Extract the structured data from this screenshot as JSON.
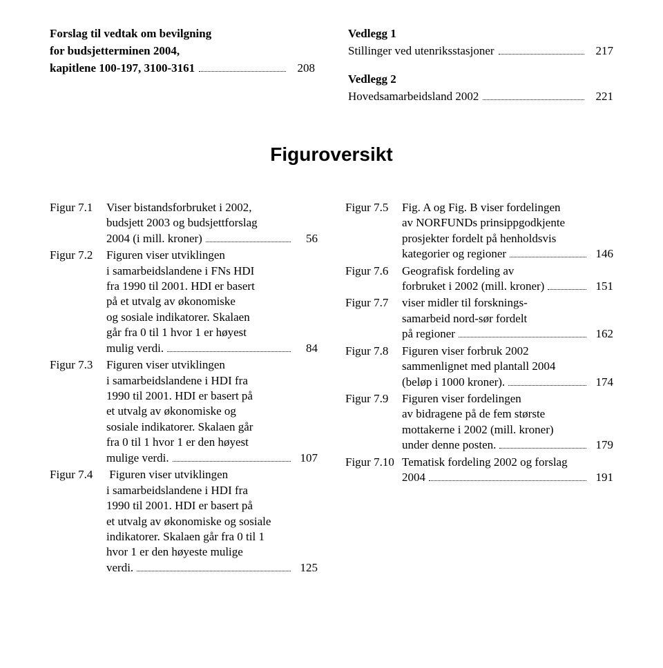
{
  "top_left": {
    "title_lines": [
      "Forslag til vedtak om bevilgning",
      "for budsjetterminen 2004,"
    ],
    "last_line_text": "kapitlene 100-197, 3100-3161",
    "page": "208"
  },
  "top_right": {
    "section1_title": "Vedlegg 1",
    "section1_text": "Stillinger ved utenriksstasjoner",
    "section1_page": "217",
    "section2_title": "Vedlegg 2",
    "section2_text": "Hovedsamarbeidsland 2002",
    "section2_page": "221"
  },
  "heading": "Figuroversikt",
  "left_figs": [
    {
      "label": "Figur 7.1",
      "lines": [
        "Viser bistandsforbruket i 2002,",
        "budsjett 2003 og budsjettforslag"
      ],
      "last": "2004 (i mill. kroner)",
      "page": "56"
    },
    {
      "label": "Figur 7.2",
      "lines": [
        "Figuren viser utviklingen",
        "i samarbeidslandene i FNs HDI",
        "fra 1990 til 2001. HDI er basert",
        "på et utvalg av økonomiske",
        "og sosiale indikatorer. Skalaen",
        "går fra 0 til 1 hvor 1 er høyest"
      ],
      "last": "mulig verdi.",
      "page": "84"
    },
    {
      "label": "Figur 7.3",
      "lines": [
        "Figuren viser utviklingen",
        "i samarbeidslandene i HDI fra",
        "1990 til 2001. HDI er basert på",
        "et utvalg av økonomiske og",
        "sosiale indikatorer. Skalaen går",
        "fra 0 til 1 hvor 1 er den høyest"
      ],
      "last": "mulige verdi.",
      "page": "107"
    },
    {
      "label": "Figur 7.4",
      "lines": [
        " Figuren viser utviklingen",
        "i samarbeidslandene i HDI fra",
        "1990 til 2001. HDI er basert på",
        "et utvalg av økonomiske og sosiale",
        "indikatorer. Skalaen går fra 0 til 1",
        "hvor 1 er den høyeste mulige"
      ],
      "last": "verdi.",
      "page": "125"
    }
  ],
  "right_figs": [
    {
      "label": "Figur 7.5",
      "lines": [
        "Fig. A og Fig. B viser fordelingen",
        "av NORFUNDs prinsippgodkjente",
        "prosjekter fordelt på henholdsvis"
      ],
      "last": "kategorier og regioner",
      "page": "146"
    },
    {
      "label": "Figur 7.6",
      "lines": [
        "Geografisk fordeling av"
      ],
      "last": "forbruket i 2002 (mill. kroner)",
      "page": "151"
    },
    {
      "label": "Figur 7.7",
      "lines": [
        "viser midler til forsknings-",
        "samarbeid nord-sør fordelt"
      ],
      "last": "på regioner",
      "page": "162"
    },
    {
      "label": "Figur 7.8",
      "lines": [
        "Figuren viser forbruk 2002",
        "sammenlignet med plantall 2004"
      ],
      "last": "(beløp i 1000 kroner).",
      "page": "174"
    },
    {
      "label": "Figur 7.9",
      "lines": [
        "Figuren viser fordelingen",
        "av bidragene på de fem største",
        "mottakerne i 2002 (mill. kroner)"
      ],
      "last": "under denne posten.",
      "page": "179"
    },
    {
      "label": "Figur 7.10",
      "lines": [
        "Tematisk fordeling 2002 og forslag"
      ],
      "last": "2004",
      "page": "191"
    }
  ]
}
